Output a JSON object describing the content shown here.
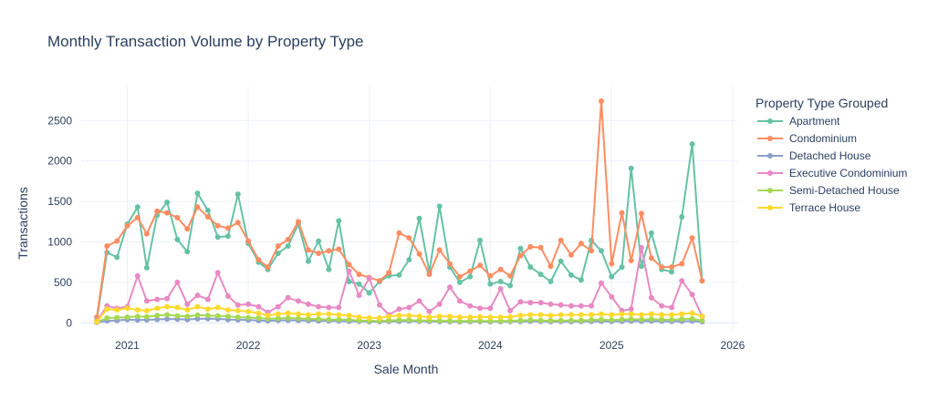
{
  "chart_data": {
    "type": "line",
    "title": "Monthly Transaction Volume by Property Type",
    "xlabel": "Sale Month",
    "ylabel": "Transactions",
    "x_start": "2020-10",
    "x_range": [
      "2020-08-15",
      "2026-01-15"
    ],
    "ylim": [
      -120,
      2920
    ],
    "x_ticks": [
      "2021",
      "2022",
      "2023",
      "2024",
      "2025",
      "2026"
    ],
    "y_ticks": [
      0,
      500,
      1000,
      1500,
      2000,
      2500
    ],
    "grid": true,
    "legend": {
      "title": "Property Type Grouped",
      "position": "right"
    },
    "series": [
      {
        "name": "Apartment",
        "color": "#66c2a5",
        "values": [
          30,
          870,
          810,
          1220,
          1430,
          680,
          1330,
          1490,
          1030,
          880,
          1600,
          1390,
          1060,
          1070,
          1590,
          980,
          750,
          660,
          860,
          950,
          1220,
          760,
          1010,
          660,
          1260,
          510,
          480,
          370,
          510,
          580,
          590,
          780,
          1290,
          630,
          1440,
          690,
          500,
          570,
          1020,
          480,
          510,
          460,
          920,
          690,
          600,
          510,
          760,
          590,
          530,
          1020,
          890,
          570,
          690,
          1910,
          700,
          1110,
          660,
          630,
          1310,
          2210,
          520
        ]
      },
      {
        "name": "Condominium",
        "color": "#fc8d62",
        "values": [
          70,
          950,
          1010,
          1200,
          1300,
          1100,
          1380,
          1360,
          1300,
          1160,
          1430,
          1310,
          1200,
          1170,
          1240,
          1010,
          780,
          690,
          950,
          1030,
          1250,
          900,
          860,
          890,
          910,
          720,
          600,
          560,
          520,
          620,
          1110,
          1050,
          850,
          600,
          900,
          730,
          570,
          640,
          710,
          580,
          660,
          580,
          830,
          940,
          930,
          700,
          1020,
          840,
          980,
          890,
          2740,
          730,
          1360,
          770,
          1350,
          800,
          690,
          690,
          730,
          1050,
          520
        ]
      },
      {
        "name": "Detached House",
        "color": "#8da0cb",
        "values": [
          5,
          25,
          30,
          40,
          35,
          38,
          42,
          48,
          45,
          40,
          50,
          52,
          50,
          40,
          38,
          35,
          30,
          25,
          30,
          32,
          30,
          28,
          25,
          24,
          22,
          20,
          18,
          15,
          15,
          18,
          20,
          22,
          20,
          18,
          15,
          15,
          14,
          15,
          16,
          14,
          15,
          16,
          18,
          20,
          18,
          15,
          16,
          15,
          16,
          18,
          20,
          18,
          20,
          22,
          20,
          22,
          20,
          18,
          20,
          22,
          15
        ]
      },
      {
        "name": "Executive Condominium",
        "color": "#e78ac3",
        "values": [
          20,
          210,
          180,
          200,
          580,
          270,
          290,
          300,
          500,
          230,
          340,
          290,
          620,
          330,
          220,
          230,
          200,
          130,
          200,
          310,
          270,
          230,
          200,
          190,
          190,
          640,
          340,
          550,
          220,
          100,
          170,
          190,
          270,
          140,
          230,
          440,
          270,
          210,
          180,
          180,
          420,
          150,
          260,
          250,
          250,
          230,
          220,
          210,
          210,
          210,
          490,
          320,
          150,
          170,
          930,
          310,
          210,
          190,
          520,
          350,
          80
        ]
      },
      {
        "name": "Semi-Detached House",
        "color": "#a6d854",
        "values": [
          10,
          60,
          65,
          70,
          80,
          75,
          90,
          100,
          85,
          80,
          95,
          90,
          85,
          80,
          70,
          65,
          60,
          50,
          55,
          60,
          55,
          50,
          45,
          40,
          40,
          38,
          30,
          25,
          25,
          30,
          35,
          35,
          30,
          30,
          25,
          25,
          22,
          24,
          25,
          22,
          24,
          25,
          30,
          35,
          30,
          28,
          30,
          30,
          30,
          35,
          40,
          35,
          40,
          45,
          40,
          45,
          40,
          38,
          45,
          50,
          30
        ]
      },
      {
        "name": "Terrace House",
        "color": "#ffd92f",
        "values": [
          15,
          170,
          160,
          180,
          160,
          150,
          180,
          200,
          190,
          160,
          200,
          170,
          190,
          160,
          150,
          140,
          120,
          90,
          110,
          120,
          110,
          100,
          110,
          110,
          100,
          90,
          70,
          60,
          60,
          80,
          90,
          90,
          80,
          70,
          80,
          80,
          70,
          70,
          75,
          70,
          70,
          75,
          90,
          100,
          100,
          90,
          100,
          100,
          100,
          100,
          110,
          100,
          110,
          110,
          100,
          110,
          100,
          100,
          110,
          120,
          80
        ]
      }
    ]
  }
}
